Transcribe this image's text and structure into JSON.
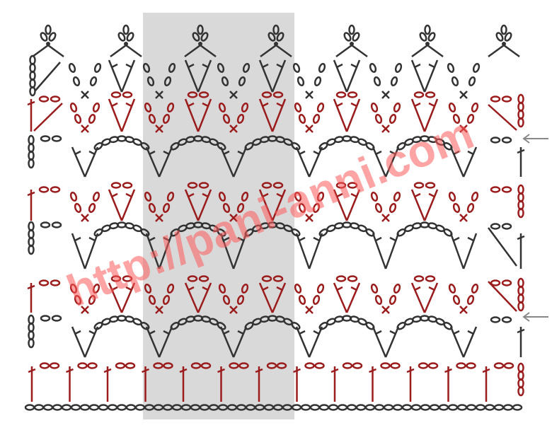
{
  "watermark": "http://pani-anni.com"
}
